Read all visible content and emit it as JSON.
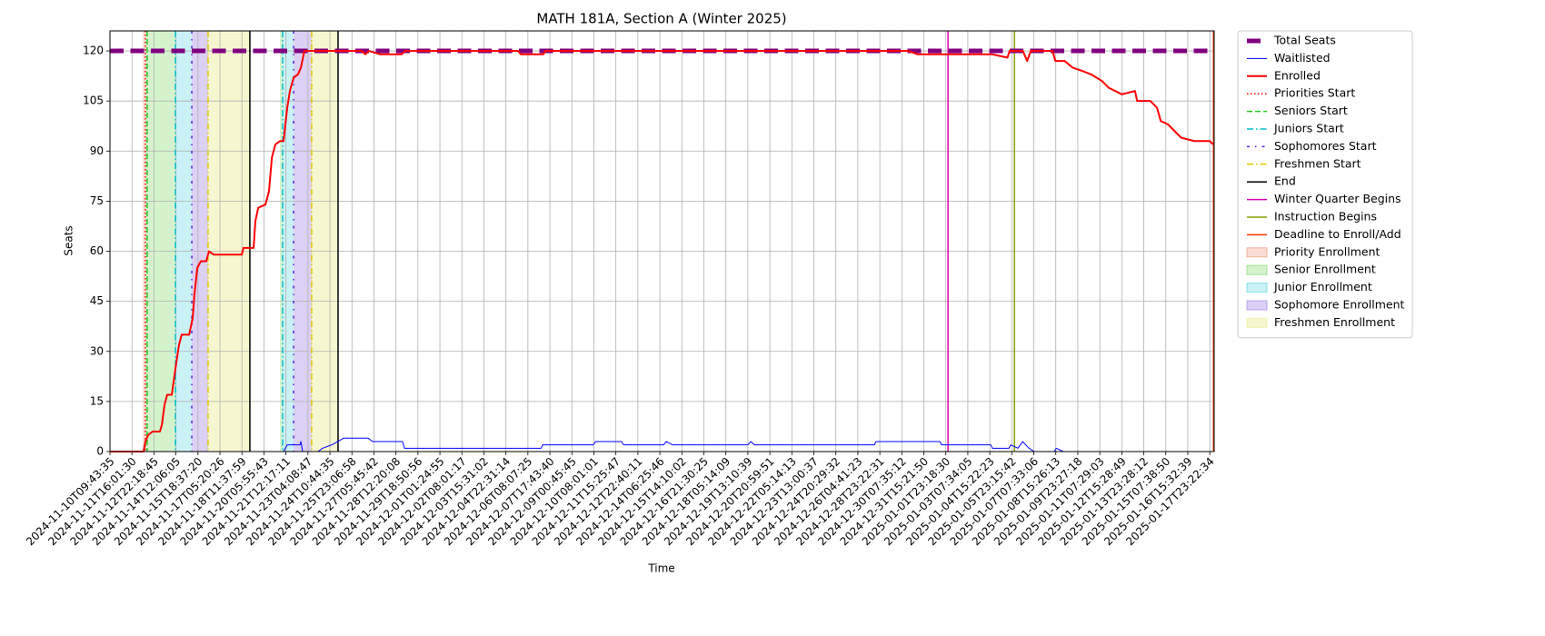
{
  "chart_data": {
    "type": "line",
    "title": "MATH 181A, Section A (Winter 2025)",
    "x_label": "Time",
    "y_label": "Seats",
    "xlim": [
      0,
      50.2
    ],
    "ylim": [
      0,
      126
    ],
    "grid": true,
    "legend": "outside right",
    "yticks": [
      0,
      15,
      30,
      45,
      60,
      75,
      90,
      105,
      120
    ],
    "xticks": [
      {
        "value": 0,
        "label": "2024-11-10T09:43:35"
      },
      {
        "value": 1,
        "label": "2024-11-11T16:01:30"
      },
      {
        "value": 2,
        "label": "2024-11-12T22:18:45"
      },
      {
        "value": 3,
        "label": "2024-11-14T12:06:05"
      },
      {
        "value": 4,
        "label": "2024-11-15T18:37:20"
      },
      {
        "value": 5,
        "label": "2024-11-17T05:20:26"
      },
      {
        "value": 6,
        "label": "2024-11-18T11:37:59"
      },
      {
        "value": 7,
        "label": "2024-11-20T05:55:43"
      },
      {
        "value": 8,
        "label": "2024-11-21T12:17:11"
      },
      {
        "value": 9,
        "label": "2024-11-23T04:08:47"
      },
      {
        "value": 10,
        "label": "2024-11-24T10:44:35"
      },
      {
        "value": 11,
        "label": "2024-11-25T23:06:58"
      },
      {
        "value": 12,
        "label": "2024-11-27T05:45:42"
      },
      {
        "value": 13,
        "label": "2024-11-28T12:20:08"
      },
      {
        "value": 14,
        "label": "2024-11-29T18:50:56"
      },
      {
        "value": 15,
        "label": "2024-12-01T01:24:55"
      },
      {
        "value": 16,
        "label": "2024-12-02T08:01:17"
      },
      {
        "value": 17,
        "label": "2024-12-03T15:31:02"
      },
      {
        "value": 18,
        "label": "2024-12-04T22:31:14"
      },
      {
        "value": 19,
        "label": "2024-12-06T08:07:25"
      },
      {
        "value": 20,
        "label": "2024-12-07T17:43:40"
      },
      {
        "value": 21,
        "label": "2024-12-09T00:45:45"
      },
      {
        "value": 22,
        "label": "2024-12-10T08:01:01"
      },
      {
        "value": 23,
        "label": "2024-12-11T15:25:47"
      },
      {
        "value": 24,
        "label": "2024-12-12T22:40:11"
      },
      {
        "value": 25,
        "label": "2024-12-14T06:25:46"
      },
      {
        "value": 26,
        "label": "2024-12-15T14:10:02"
      },
      {
        "value": 27,
        "label": "2024-12-16T21:30:25"
      },
      {
        "value": 28,
        "label": "2024-12-18T05:14:09"
      },
      {
        "value": 29,
        "label": "2024-12-19T13:10:39"
      },
      {
        "value": 30,
        "label": "2024-12-20T20:59:51"
      },
      {
        "value": 31,
        "label": "2024-12-22T05:14:13"
      },
      {
        "value": 32,
        "label": "2024-12-23T13:00:37"
      },
      {
        "value": 33,
        "label": "2024-12-24T20:29:32"
      },
      {
        "value": 34,
        "label": "2024-12-26T04:41:23"
      },
      {
        "value": 35,
        "label": "2024-12-28T23:22:31"
      },
      {
        "value": 36,
        "label": "2024-12-30T07:35:12"
      },
      {
        "value": 37,
        "label": "2024-12-31T15:21:50"
      },
      {
        "value": 38,
        "label": "2025-01-01T23:18:30"
      },
      {
        "value": 39,
        "label": "2025-01-03T07:34:05"
      },
      {
        "value": 40,
        "label": "2025-01-04T15:22:23"
      },
      {
        "value": 41,
        "label": "2025-01-05T23:15:42"
      },
      {
        "value": 42,
        "label": "2025-01-07T07:33:06"
      },
      {
        "value": 43,
        "label": "2025-01-08T15:26:13"
      },
      {
        "value": 44,
        "label": "2025-01-09T23:27:18"
      },
      {
        "value": 45,
        "label": "2025-01-11T07:29:03"
      },
      {
        "value": 46,
        "label": "2025-01-12T15:28:49"
      },
      {
        "value": 47,
        "label": "2025-01-13T23:28:12"
      },
      {
        "value": 48,
        "label": "2025-01-15T07:38:50"
      },
      {
        "value": 49,
        "label": "2025-01-16T15:32:39"
      },
      {
        "value": 50,
        "label": "2025-01-17T23:22:34"
      }
    ],
    "series": [
      {
        "name": "Total Seats",
        "color": "#800080",
        "style": "dashed",
        "width": 5,
        "x": [
          0,
          50.2
        ],
        "values": [
          120,
          120
        ]
      },
      {
        "name": "Waitlisted",
        "color": "#0000ff",
        "style": "solid",
        "width": 1,
        "x": [
          0,
          7.89,
          8.06,
          8.64,
          8.68,
          8.76,
          9.46,
          9.67,
          10.08,
          10.62,
          11.74,
          11.94,
          13.3,
          13.39,
          19.6,
          19.67,
          21.98,
          22.07,
          23.26,
          23.35,
          25.17,
          25.29,
          25.58,
          29.0,
          29.13,
          29.3,
          34.75,
          34.83,
          37.73,
          37.81,
          40.04,
          40.12,
          40.87,
          40.95,
          41.28,
          41.49,
          41.78,
          42.02,
          42.93,
          43.02,
          43.35,
          50.2
        ],
        "values": [
          0,
          0,
          2,
          2,
          3,
          0,
          0,
          1,
          2,
          4,
          4,
          3,
          3,
          1,
          1,
          2,
          2,
          3,
          3,
          2,
          2,
          3,
          2,
          2,
          3,
          2,
          2,
          3,
          3,
          2,
          2,
          1,
          1,
          2,
          1,
          3,
          1,
          0,
          0,
          1,
          0,
          0
        ]
      },
      {
        "name": "Enrolled",
        "color": "#ff0000",
        "style": "solid",
        "width": 2,
        "x": [
          0,
          1.53,
          1.61,
          1.74,
          1.94,
          2.27,
          2.36,
          2.48,
          2.6,
          2.81,
          2.98,
          3.14,
          3.26,
          3.6,
          3.76,
          3.84,
          3.97,
          4.13,
          4.38,
          4.5,
          4.71,
          5.99,
          6.07,
          6.53,
          6.61,
          6.74,
          7.07,
          7.23,
          7.36,
          7.52,
          7.73,
          7.89,
          8.06,
          8.18,
          8.35,
          8.55,
          8.68,
          8.84,
          11.45,
          11.61,
          11.78,
          12.27,
          13.26,
          13.43,
          18.55,
          18.68,
          19.71,
          19.79,
          36.3,
          36.7,
          37.8,
          39.1,
          40.1,
          40.8,
          40.9,
          41.5,
          41.7,
          41.86,
          42.85,
          42.98,
          43.4,
          43.76,
          44.2,
          44.6,
          45.1,
          45.4,
          46.0,
          46.6,
          46.7,
          47.3,
          47.6,
          47.77,
          48.1,
          48.4,
          48.7,
          49.3,
          50.0,
          50.15
        ],
        "values": [
          0,
          0,
          3,
          5,
          6,
          6,
          8,
          14,
          17,
          17,
          25,
          32,
          35,
          35,
          40,
          47,
          55,
          57,
          57,
          60,
          59,
          59,
          61,
          61,
          69,
          73,
          74,
          78,
          88,
          92,
          93,
          93,
          103,
          108,
          112,
          113,
          115,
          120,
          120,
          119,
          120,
          119,
          119,
          120,
          120,
          119,
          119,
          120,
          120,
          119,
          119,
          119,
          119,
          118,
          120,
          120,
          117,
          120,
          120,
          117,
          117,
          115,
          114,
          113,
          111,
          109,
          107,
          108,
          105,
          105,
          103,
          99,
          98,
          96,
          94,
          93,
          93,
          92
        ]
      }
    ],
    "vlines": [
      {
        "name": "Priorities Start",
        "color": "#ff0000",
        "style": "dotted",
        "x": [
          1.61
        ]
      },
      {
        "name": "Seniors Start",
        "color": "#22cc22",
        "style": "dashed",
        "x": [
          1.69
        ]
      },
      {
        "name": "Juniors Start",
        "color": "#00bfcf",
        "style": "dashdot",
        "x": [
          2.98,
          7.85
        ]
      },
      {
        "name": "Sophomores Start",
        "color": "#5a1fd6",
        "style": "loosedashdot",
        "x": [
          3.72,
          8.35
        ]
      },
      {
        "name": "Freshmen Start",
        "color": "#e6c800",
        "style": "dashdot",
        "x": [
          4.46,
          9.17
        ]
      },
      {
        "name": "End",
        "color": "#000000",
        "style": "solid",
        "x": [
          6.36,
          10.37
        ]
      },
      {
        "name": "Winter Quarter Begins",
        "color": "#e000b0",
        "style": "solid",
        "x": [
          38.1
        ]
      },
      {
        "name": "Instruction Begins",
        "color": "#88a000",
        "style": "solid",
        "x": [
          41.12
        ]
      },
      {
        "name": "Deadline to Enroll/Add",
        "color": "#ff3300",
        "style": "solid",
        "x": [
          50.17
        ]
      }
    ],
    "spans": [
      {
        "name": "Priority Enrollment",
        "color": "#f08a6a",
        "alpha": 0.3,
        "ranges": [
          [
            1.49,
            1.61
          ]
        ]
      },
      {
        "name": "Senior Enrollment",
        "color": "#6fd85a",
        "alpha": 0.3,
        "ranges": [
          [
            1.61,
            2.98
          ],
          [
            7.73,
            7.85
          ]
        ]
      },
      {
        "name": "Junior Enrollment",
        "color": "#4fd0e0",
        "alpha": 0.3,
        "ranges": [
          [
            2.98,
            3.72
          ],
          [
            7.85,
            8.35
          ]
        ]
      },
      {
        "name": "Sophomore Enrollment",
        "color": "#9a78e0",
        "alpha": 0.35,
        "ranges": [
          [
            3.72,
            4.46
          ],
          [
            8.35,
            9.17
          ]
        ]
      },
      {
        "name": "Freshmen Enrollment",
        "color": "#e8ec8a",
        "alpha": 0.4,
        "ranges": [
          [
            4.46,
            6.36
          ],
          [
            9.17,
            10.37
          ]
        ]
      }
    ]
  }
}
